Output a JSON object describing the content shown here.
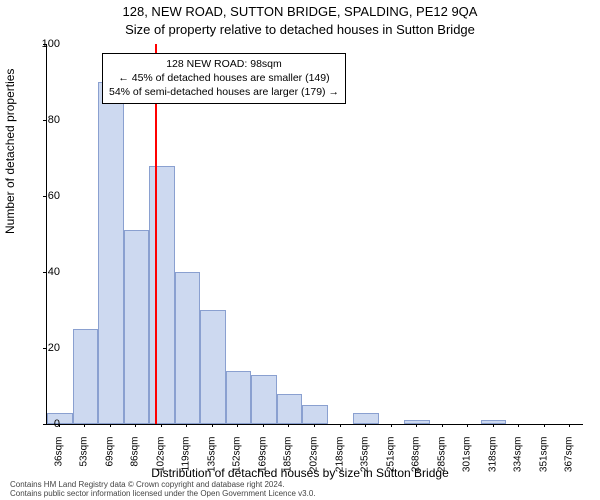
{
  "title_main": "128, NEW ROAD, SUTTON BRIDGE, SPALDING, PE12 9QA",
  "title_sub": "Size of property relative to detached houses in Sutton Bridge",
  "y_axis_label": "Number of detached properties",
  "x_axis_label": "Distribution of detached houses by size in Sutton Bridge",
  "chart": {
    "type": "histogram",
    "ylim": [
      0,
      100
    ],
    "yticks": [
      0,
      20,
      40,
      60,
      80,
      100
    ],
    "bar_fill": "#cdd9f0",
    "bar_border": "#8aa0d0",
    "background_color": "#ffffff",
    "marker_color": "#ff0000",
    "marker_value_sqm": 98,
    "categories": [
      "36sqm",
      "53sqm",
      "69sqm",
      "86sqm",
      "102sqm",
      "119sqm",
      "135sqm",
      "152sqm",
      "169sqm",
      "185sqm",
      "202sqm",
      "218sqm",
      "235sqm",
      "251sqm",
      "268sqm",
      "285sqm",
      "301sqm",
      "318sqm",
      "334sqm",
      "351sqm",
      "367sqm"
    ],
    "values": [
      3,
      25,
      90,
      51,
      68,
      40,
      30,
      14,
      13,
      8,
      5,
      0,
      3,
      0,
      1,
      0,
      0,
      1,
      0,
      0,
      0
    ]
  },
  "infobox": {
    "line1": "128 NEW ROAD: 98sqm",
    "line2": "← 45% of detached houses are smaller (149)",
    "line3": "54% of semi-detached houses are larger (179) →"
  },
  "footer": {
    "line1": "Contains HM Land Registry data © Crown copyright and database right 2024.",
    "line2": "Contains public sector information licensed under the Open Government Licence v3.0."
  },
  "fonts": {
    "title_size_pt": 13,
    "axis_label_size_pt": 12,
    "tick_size_pt": 11,
    "xtick_size_pt": 10,
    "infobox_size_pt": 10.5,
    "footer_size_pt": 8
  }
}
